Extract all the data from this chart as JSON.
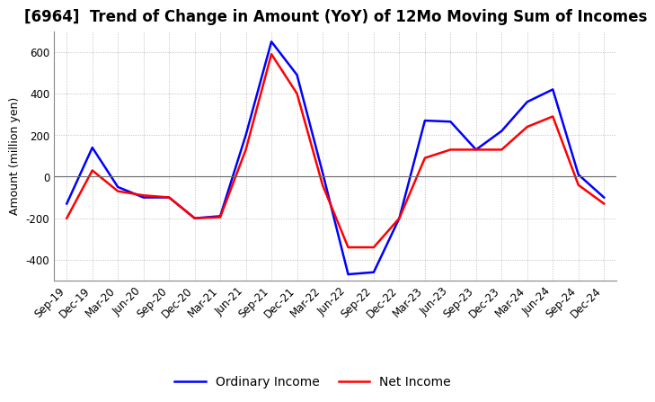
{
  "title": "[6964]  Trend of Change in Amount (YoY) of 12Mo Moving Sum of Incomes",
  "ylabel": "Amount (million yen)",
  "x_labels": [
    "Sep-19",
    "Dec-19",
    "Mar-20",
    "Jun-20",
    "Sep-20",
    "Dec-20",
    "Mar-21",
    "Jun-21",
    "Sep-21",
    "Dec-21",
    "Mar-22",
    "Jun-22",
    "Sep-22",
    "Dec-22",
    "Mar-23",
    "Jun-23",
    "Sep-23",
    "Dec-23",
    "Mar-24",
    "Jun-24",
    "Sep-24",
    "Dec-24"
  ],
  "ordinary_income": [
    -130,
    140,
    -50,
    -100,
    -100,
    -200,
    -190,
    200,
    650,
    490,
    20,
    -470,
    -460,
    -200,
    270,
    265,
    130,
    220,
    360,
    420,
    10,
    -100
  ],
  "net_income": [
    -200,
    30,
    -70,
    -90,
    -100,
    -200,
    -195,
    130,
    590,
    400,
    -40,
    -340,
    -340,
    -200,
    90,
    130,
    130,
    130,
    240,
    290,
    -40,
    -130
  ],
  "ordinary_color": "#0000ff",
  "net_color": "#ff0000",
  "ylim": [
    -500,
    700
  ],
  "yticks": [
    -400,
    -200,
    0,
    200,
    400,
    600
  ],
  "background_color": "#ffffff",
  "grid_color": "#aaaaaa",
  "title_fontsize": 12,
  "axis_fontsize": 9,
  "tick_fontsize": 8.5,
  "legend_fontsize": 10
}
